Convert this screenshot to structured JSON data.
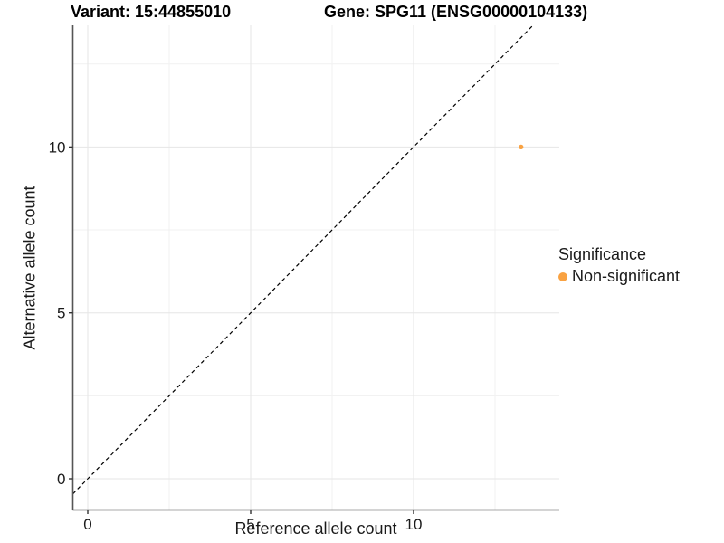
{
  "header": {
    "variant_title": "Variant: 15:44855010",
    "gene_title": "Gene: SPG11 (ENSG00000104133)"
  },
  "chart_data": {
    "type": "scatter",
    "xlabel": "Reference allele count",
    "ylabel": "Alternative allele count",
    "x_ticks": [
      0,
      5,
      10
    ],
    "y_ticks": [
      0,
      5,
      10
    ],
    "x_minor_ticks": [
      2.5,
      7.5,
      12.5
    ],
    "y_minor_ticks": [
      2.5,
      7.5,
      12.5
    ],
    "xlim": [
      -0.5,
      14.5
    ],
    "ylim": [
      -0.9,
      13.7
    ],
    "grid": true,
    "background_color": "#FFFFFF",
    "major_grid_color": "#E6E6E6",
    "minor_grid_color": "#F1F1F1",
    "axis_line_color": "#555555",
    "reference_line": {
      "type": "identity",
      "slope": 1,
      "intercept": 0,
      "style": "dashed",
      "color": "#000000"
    },
    "series": [
      {
        "name": "Non-significant",
        "color": "#F9A242",
        "points": [
          {
            "x": 13.3,
            "y": 10
          }
        ]
      }
    ],
    "legend": {
      "title": "Significance",
      "position": "right",
      "items": [
        {
          "label": "Non-significant",
          "color": "#F9A242",
          "marker": "circle"
        }
      ]
    }
  }
}
